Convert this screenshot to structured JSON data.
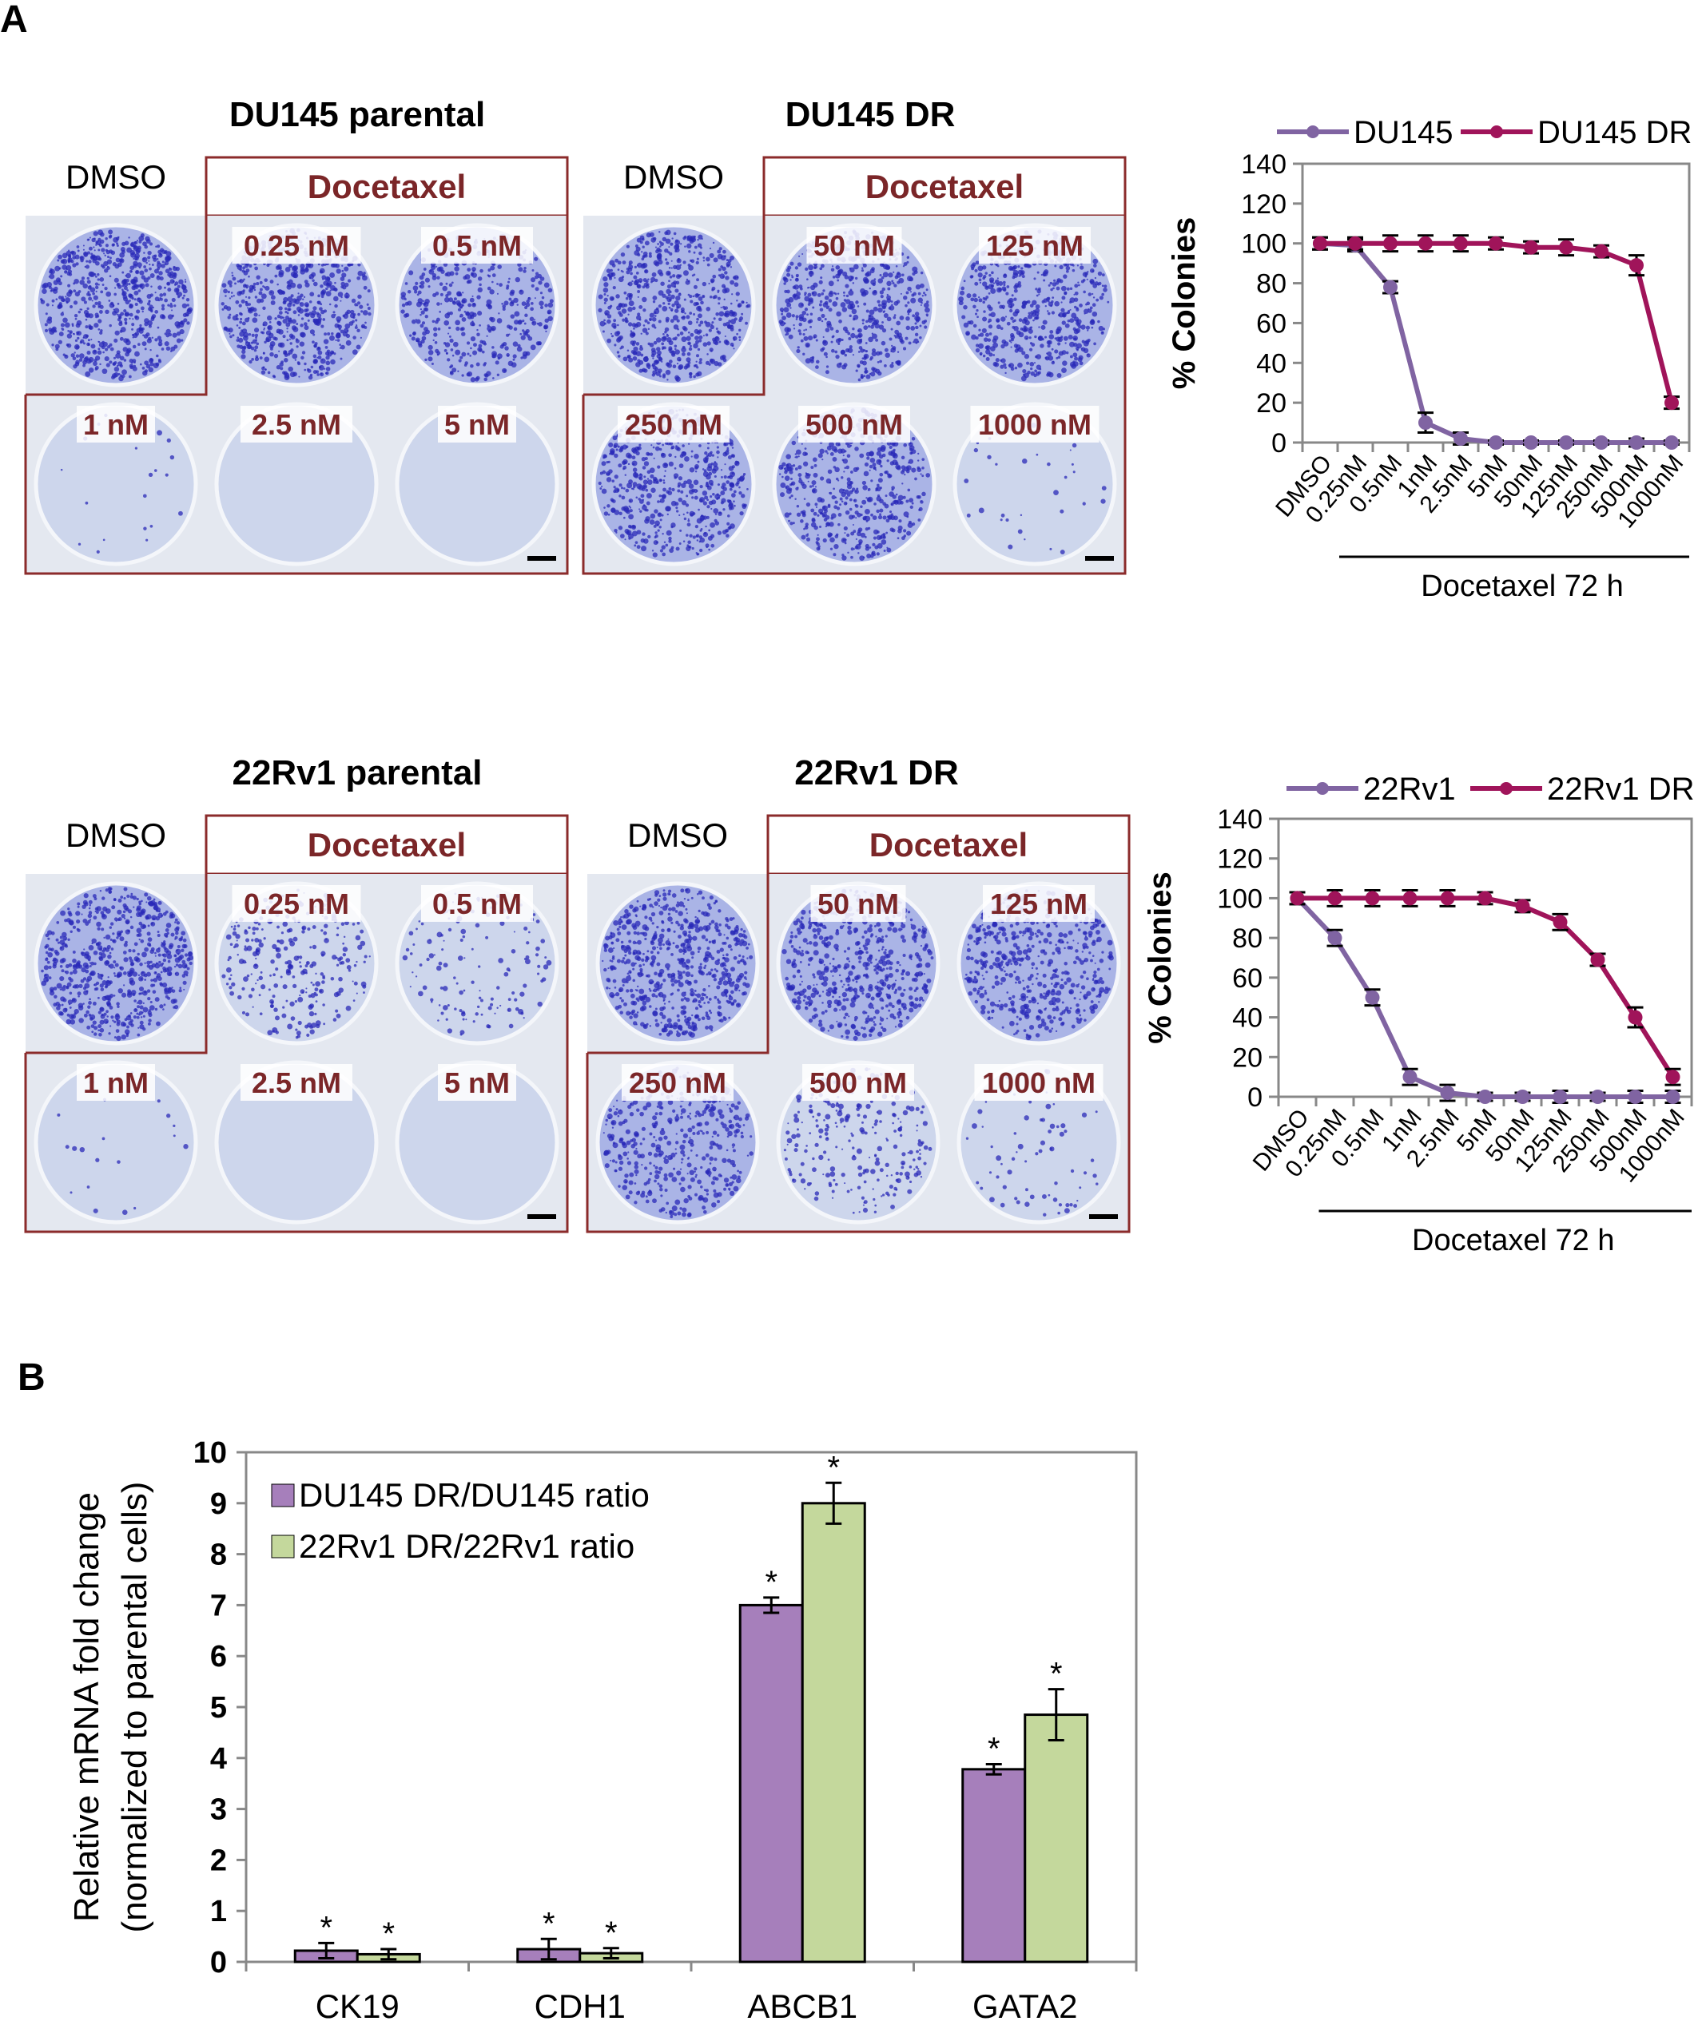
{
  "panel_a_label": "A",
  "panel_b_label": "B",
  "colors": {
    "parental_line": "#8064a2",
    "dr_line": "#a0145a",
    "bar_du145": "#a67fbb",
    "bar_22rv1": "#c4d89c",
    "plate_label": "#7b2628",
    "plate_frame": "#8b2b2b",
    "stain": "#2a2ab8"
  },
  "plates": [
    {
      "title": "DU145 parental",
      "dmso": "DMSO",
      "treatment": "Docetaxel",
      "wells": [
        {
          "label": "",
          "stain": 1.0
        },
        {
          "label": "0.25 nM",
          "stain": 0.9
        },
        {
          "label": "0.5 nM",
          "stain": 0.6
        },
        {
          "label": "1 nM",
          "stain": 0.03
        },
        {
          "label": "2.5 nM",
          "stain": 0.0
        },
        {
          "label": "5 nM",
          "stain": 0.0
        }
      ]
    },
    {
      "title": "DU145 DR",
      "dmso": "DMSO",
      "treatment": "Docetaxel",
      "wells": [
        {
          "label": "",
          "stain": 0.9
        },
        {
          "label": "50 nM",
          "stain": 0.8
        },
        {
          "label": "125 nM",
          "stain": 0.8
        },
        {
          "label": "250 nM",
          "stain": 0.8
        },
        {
          "label": "500 nM",
          "stain": 0.75
        },
        {
          "label": "1000 nM",
          "stain": 0.05
        }
      ]
    },
    {
      "title": "22Rv1 parental",
      "dmso": "DMSO",
      "treatment": "Docetaxel",
      "wells": [
        {
          "label": "",
          "stain": 0.9
        },
        {
          "label": "0.25 nM",
          "stain": 0.4
        },
        {
          "label": "0.5 nM",
          "stain": 0.2
        },
        {
          "label": "1 nM",
          "stain": 0.03
        },
        {
          "label": "2.5 nM",
          "stain": 0.0
        },
        {
          "label": "5 nM",
          "stain": 0.0
        }
      ]
    },
    {
      "title": "22Rv1 DR",
      "dmso": "DMSO",
      "treatment": "Docetaxel",
      "wells": [
        {
          "label": "",
          "stain": 0.9
        },
        {
          "label": "50 nM",
          "stain": 0.8
        },
        {
          "label": "125 nM",
          "stain": 0.7
        },
        {
          "label": "250 nM",
          "stain": 0.6
        },
        {
          "label": "500 nM",
          "stain": 0.35
        },
        {
          "label": "1000 nM",
          "stain": 0.1
        }
      ]
    }
  ],
  "chart_data": [
    {
      "type": "line",
      "ylabel": "% Colonies",
      "xlabel": "Docetaxel 72 h",
      "ylim": [
        0,
        140
      ],
      "yticks": [
        0,
        20,
        40,
        60,
        80,
        100,
        120,
        140
      ],
      "grid": false,
      "legend": "top",
      "categories": [
        "DMSO",
        "0.25nM",
        "0.5nM",
        "1nM",
        "2.5nM",
        "5nM",
        "50nM",
        "125nM",
        "250nM",
        "500nM",
        "1000nM"
      ],
      "series": [
        {
          "name": "DU145",
          "color": "#8064a2",
          "values": [
            100,
            99,
            78,
            10,
            2,
            0,
            0,
            0,
            0,
            0,
            0
          ],
          "errors": [
            3,
            3,
            3,
            5,
            3,
            1,
            1,
            1,
            1,
            2,
            1
          ]
        },
        {
          "name": "DU145 DR",
          "color": "#a0145a",
          "values": [
            100,
            100,
            100,
            100,
            100,
            100,
            98,
            98,
            96,
            89,
            20
          ],
          "errors": [
            3,
            3,
            4,
            4,
            4,
            3,
            3,
            4,
            3,
            5,
            3
          ]
        }
      ]
    },
    {
      "type": "line",
      "ylabel": "% Colonies",
      "xlabel": "Docetaxel 72 h",
      "ylim": [
        0,
        140
      ],
      "yticks": [
        0,
        20,
        40,
        60,
        80,
        100,
        120,
        140
      ],
      "grid": false,
      "legend": "top",
      "categories": [
        "DMSO",
        "0.25nM",
        "0.5nM",
        "1nM",
        "2.5nM",
        "5nM",
        "50nM",
        "125nM",
        "250nM",
        "500nM",
        "1000nM"
      ],
      "series": [
        {
          "name": "22Rv1",
          "color": "#8064a2",
          "values": [
            100,
            80,
            50,
            10,
            2,
            0,
            0,
            0,
            0,
            0,
            0
          ],
          "errors": [
            3,
            4,
            4,
            4,
            4,
            2,
            2,
            3,
            2,
            3,
            3
          ]
        },
        {
          "name": "22Rv1 DR",
          "color": "#a0145a",
          "values": [
            100,
            100,
            100,
            100,
            100,
            100,
            96,
            88,
            69,
            40,
            10
          ],
          "errors": [
            3,
            4,
            4,
            4,
            4,
            3,
            3,
            4,
            3,
            5,
            4
          ]
        }
      ]
    },
    {
      "type": "bar",
      "ylabel": "Relative mRNA fold change (normalized to parental cells)",
      "ylim": [
        0,
        10
      ],
      "yticks": [
        0,
        1,
        2,
        3,
        4,
        5,
        6,
        7,
        8,
        9,
        10
      ],
      "grid": false,
      "legend": "top-left",
      "categories": [
        "CK19",
        "CDH1",
        "ABCB1",
        "GATA2"
      ],
      "series": [
        {
          "name": "DU145 DR/DU145 ratio",
          "color": "#a67fbb",
          "values": [
            0.22,
            0.25,
            7.0,
            3.78
          ],
          "errors": [
            0.15,
            0.2,
            0.15,
            0.1
          ],
          "annotations": [
            "*",
            "*",
            "*",
            "*"
          ]
        },
        {
          "name": "22Rv1 DR/22Rv1 ratio",
          "color": "#c4d89c",
          "values": [
            0.15,
            0.17,
            9.0,
            4.85
          ],
          "errors": [
            0.1,
            0.1,
            0.4,
            0.5
          ],
          "annotations": [
            "*",
            "*",
            "*",
            "*"
          ]
        }
      ]
    }
  ]
}
